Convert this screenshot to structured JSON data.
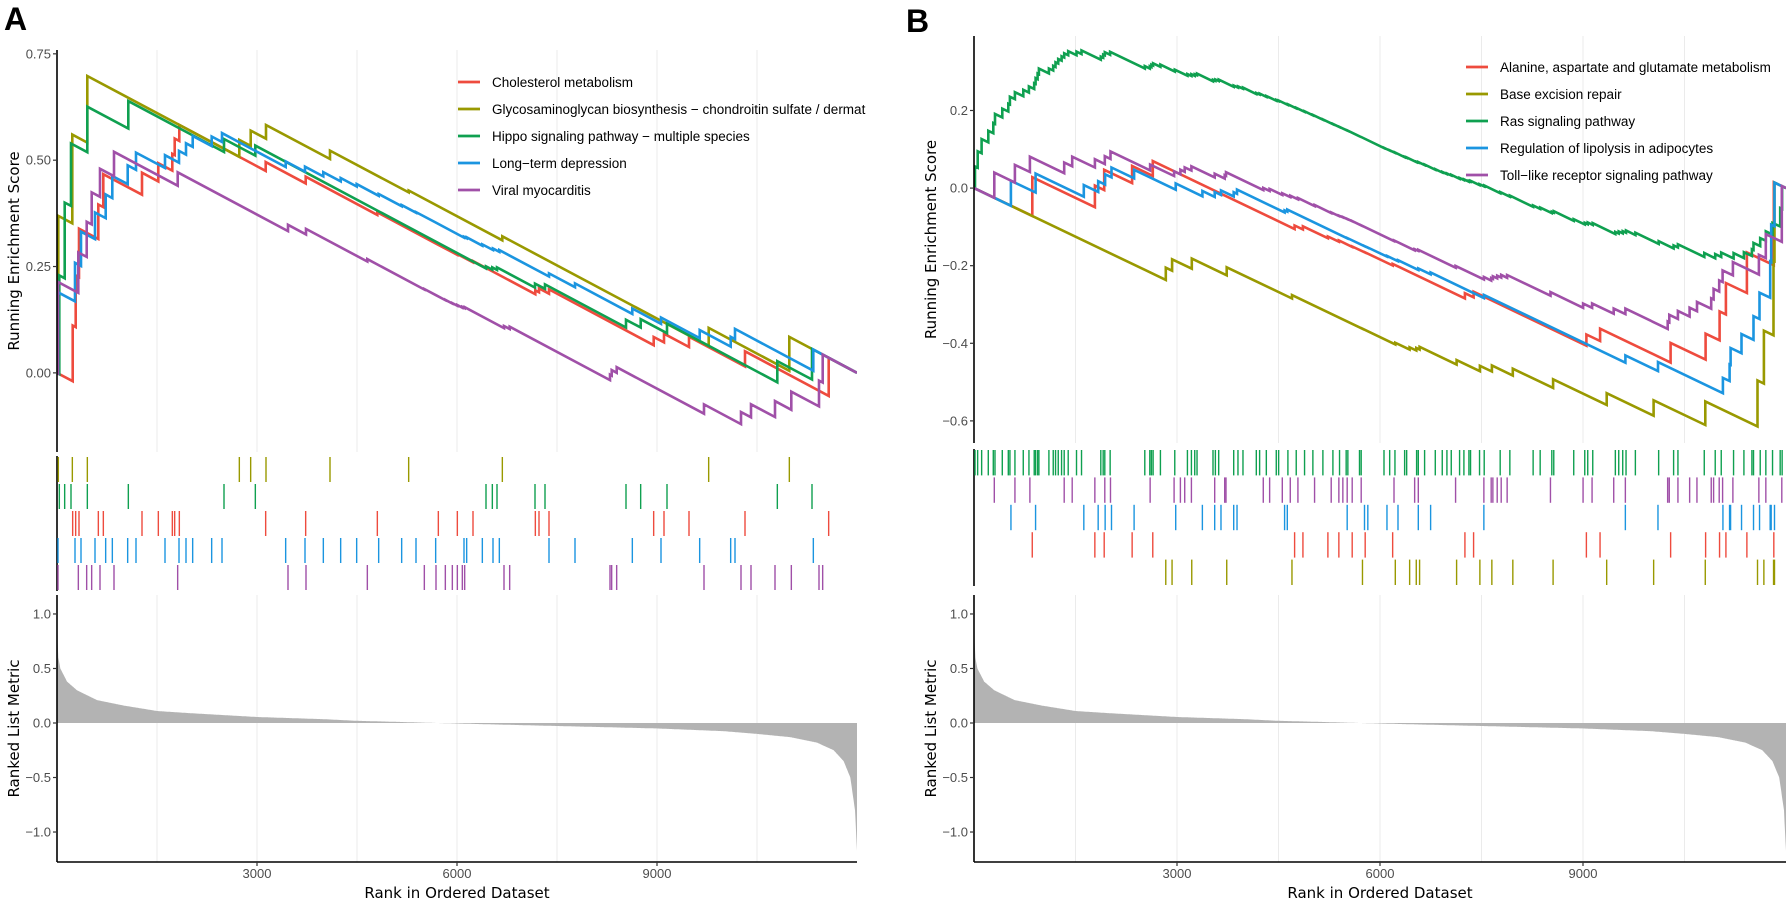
{
  "chart_data": [
    {
      "panel_label": "A",
      "type": "line",
      "xlabel": "Rank in Ordered Dataset",
      "ylabel_es": "Running Enrichment Score",
      "ylabel_metric": "Ranked List Metric",
      "x_range": [
        0,
        12000
      ],
      "xticks": [
        {
          "value": 3000,
          "label": "3000"
        },
        {
          "value": 6000,
          "label": "6000"
        },
        {
          "value": 9000,
          "label": "9000"
        }
      ],
      "es_ylim": [
        -0.186,
        0.759
      ],
      "es_yticks": [
        {
          "value": 0,
          "label": "0.00"
        },
        {
          "value": 0.25,
          "label": "0.25"
        },
        {
          "value": 0.5,
          "label": "0.50"
        },
        {
          "value": 0.75,
          "label": "0.75"
        }
      ],
      "metric_ylim": [
        -1.275,
        1.174
      ],
      "metric_yticks": [
        {
          "value": 1,
          "label": "1.0"
        },
        {
          "value": 0.5,
          "label": "0.5"
        },
        {
          "value": 0,
          "label": "0.0"
        },
        {
          "value": -0.5,
          "label": "−0.5"
        },
        {
          "value": -1,
          "label": "−1.0"
        }
      ],
      "grid": "vertical",
      "legend_position": "top-right",
      "hit_rows_order": [
        "Glycosaminoglycan biosynthesis − chondroitin sulfate / dermat",
        "Hippo signaling pathway − multiple species",
        "Cholesterol metabolism",
        "Long−term depression",
        "Viral myocarditis"
      ],
      "series": [
        {
          "name": "Cholesterol metabolism",
          "color": "#EE4B3E",
          "hits": [
            235,
            280,
            330,
            620,
            695,
            1275,
            1520,
            1730,
            1765,
            1835,
            3130,
            3730,
            4805,
            5720,
            6005,
            6240,
            7175,
            7230,
            7380,
            8950,
            9105,
            9480,
            10320,
            11575
          ]
        },
        {
          "name": "Glycosaminoglycan biosynthesis − chondroitin sulfate / dermat",
          "color": "#999900",
          "hits": [
            20,
            230,
            455,
            2735,
            2905,
            3135,
            4095,
            5275,
            6680,
            9775,
            10985
          ]
        },
        {
          "name": "Hippo signaling pathway − multiple species",
          "color": "#0FA050",
          "hits": [
            35,
            115,
            210,
            455,
            1070,
            2505,
            2975,
            6435,
            6530,
            6600,
            7170,
            7320,
            8535,
            8755,
            9150,
            10805,
            11325
          ]
        },
        {
          "name": "Long−term depression",
          "color": "#1B95E0",
          "hits": [
            15,
            270,
            360,
            570,
            730,
            830,
            1060,
            1185,
            1620,
            1830,
            1935,
            2035,
            2320,
            2475,
            3430,
            3720,
            3995,
            4255,
            4495,
            4825,
            5170,
            5385,
            5680,
            6105,
            6145,
            6380,
            6540,
            6635,
            7380,
            7770,
            8630,
            9060,
            9640,
            10105,
            10170,
            11345
          ]
        },
        {
          "name": "Viral myocarditis",
          "color": "#A050A8",
          "hits": [
            15,
            320,
            445,
            520,
            645,
            855,
            1810,
            3465,
            3735,
            4655,
            5510,
            5685,
            5825,
            5930,
            6005,
            6080,
            6115,
            6705,
            6790,
            8295,
            8320,
            8395,
            9705,
            10260,
            10410,
            10770,
            11015,
            11430,
            11485
          ]
        }
      ],
      "ranked_metric": [
        [
          0,
          1.15
        ],
        [
          5,
          0.8
        ],
        [
          20,
          0.6
        ],
        [
          50,
          0.5
        ],
        [
          150,
          0.38
        ],
        [
          300,
          0.3
        ],
        [
          600,
          0.21
        ],
        [
          1000,
          0.16
        ],
        [
          1500,
          0.11
        ],
        [
          2000,
          0.09
        ],
        [
          3000,
          0.055
        ],
        [
          4000,
          0.035
        ],
        [
          4500,
          0.02
        ],
        [
          5000,
          0.012
        ],
        [
          5700,
          0
        ],
        [
          7000,
          -0.02
        ],
        [
          8000,
          -0.035
        ],
        [
          9000,
          -0.05
        ],
        [
          10000,
          -0.075
        ],
        [
          10500,
          -0.1
        ],
        [
          11000,
          -0.13
        ],
        [
          11400,
          -0.18
        ],
        [
          11650,
          -0.25
        ],
        [
          11800,
          -0.35
        ],
        [
          11900,
          -0.5
        ],
        [
          11970,
          -0.8
        ],
        [
          12000,
          -1.17
        ]
      ]
    },
    {
      "panel_label": "B",
      "type": "line",
      "xlabel": "Rank in Ordered Dataset",
      "ylabel_es": "Running Enrichment Score",
      "ylabel_metric": "Ranked List Metric",
      "x_range": [
        0,
        12000
      ],
      "xticks": [
        {
          "value": 3000,
          "label": "3000"
        },
        {
          "value": 6000,
          "label": "6000"
        },
        {
          "value": 9000,
          "label": "9000"
        }
      ],
      "es_ylim": [
        -0.657,
        0.392
      ],
      "es_yticks": [
        {
          "value": -0.6,
          "label": "−0.6"
        },
        {
          "value": -0.4,
          "label": "−0.4"
        },
        {
          "value": -0.2,
          "label": "−0.2"
        },
        {
          "value": 0,
          "label": "0.0"
        },
        {
          "value": 0.2,
          "label": "0.2"
        }
      ],
      "metric_ylim": [
        -1.275,
        1.174
      ],
      "metric_yticks": [
        {
          "value": 1,
          "label": "1.0"
        },
        {
          "value": 0.5,
          "label": "0.5"
        },
        {
          "value": 0,
          "label": "0.0"
        },
        {
          "value": -0.5,
          "label": "−0.5"
        },
        {
          "value": -1,
          "label": "−1.0"
        }
      ],
      "grid": "vertical",
      "legend_position": "top-right",
      "hit_rows_order": [
        "Ras signaling pathway",
        "Toll−like receptor signaling pathway",
        "Regulation of lipolysis in adipocytes",
        "Alanine, aspartate and glutamate metabolism",
        "Base excision repair"
      ],
      "series": [
        {
          "name": "Alanine, aspartate and glutamate metabolism",
          "color": "#EE4B3E",
          "hits": [
            861,
            1786,
            1924,
            2337,
            2642,
            4738,
            4861,
            5230,
            5392,
            5589,
            5781,
            6187,
            7255,
            7383,
            9050,
            9252,
            10295,
            10812,
            11018,
            11112,
            11422,
            11820
          ]
        },
        {
          "name": "Base excision repair",
          "color": "#999900",
          "hits": [
            2834,
            2927,
            3218,
            3735,
            4699,
            5741,
            6226,
            6438,
            6536,
            6585,
            7132,
            7476,
            7653,
            7963,
            8558,
            9350,
            10044,
            10807,
            11579,
            11673,
            11816,
            11830
          ]
        },
        {
          "name": "Ras signaling pathway",
          "color": "#0FA050",
          "hits": [
            15,
            54,
            113,
            211,
            285,
            310,
            418,
            507,
            531,
            605,
            728,
            812,
            890,
            910,
            940,
            959,
            1107,
            1171,
            1205,
            1245,
            1294,
            1333,
            1392,
            1515,
            1589,
            1874,
            1909,
            1933,
            2012,
            2524,
            2598,
            2622,
            2647,
            2755,
            2967,
            3154,
            3213,
            3262,
            3296,
            3532,
            3567,
            3616,
            3838,
            3901,
            3975,
            4172,
            4221,
            4320,
            4467,
            4502,
            4639,
            4762,
            4885,
            5008,
            5156,
            5304,
            5402,
            5500,
            5525,
            5697,
            5722,
            6059,
            6143,
            6221,
            6364,
            6394,
            6541,
            6566,
            6659,
            6817,
            6920,
            6989,
            7053,
            7176,
            7240,
            7314,
            7338,
            7471,
            7540,
            7776,
            7919,
            8263,
            8367,
            8539,
            8568,
            8863,
            9026,
            9070,
            9144,
            9478,
            9528,
            9587,
            9636,
            9774,
            10118,
            10339,
            10403,
            10792,
            10954,
            11043,
            11225,
            11378,
            11496,
            11520,
            11619,
            11702,
            11801,
            11914,
            11943
          ]
        },
        {
          "name": "Regulation of lipolysis in adipocytes",
          "color": "#1B95E0",
          "hits": [
            546,
            910,
            1623,
            1835,
            1938,
            2032,
            2366,
            2981,
            3375,
            3557,
            3650,
            3838,
            3887,
            4590,
            4630,
            5515,
            5771,
            5820,
            6103,
            6266,
            6566,
            6748,
            7535,
            9626,
            10108,
            11068,
            11166,
            11181,
            11343,
            11520,
            11609,
            11766,
            11781,
            11830
          ]
        },
        {
          "name": "Toll−like receptor signaling pathway",
          "color": "#A050A8",
          "hits": [
            300,
            605,
            826,
            1333,
            1451,
            1786,
            1933,
            2017,
            2603,
            2957,
            3050,
            3114,
            3213,
            3557,
            3705,
            3724,
            4275,
            4369,
            4556,
            4674,
            4787,
            5033,
            5279,
            5392,
            5451,
            5515,
            5589,
            5722,
            6207,
            6512,
            6566,
            7117,
            7535,
            7643,
            7668,
            7732,
            7791,
            7879,
            8519,
            9001,
            9134,
            9454,
            9626,
            10251,
            10275,
            10403,
            10576,
            10684,
            10895,
            10930,
            11013,
            11063,
            11215,
            11599,
            11702,
            11938
          ]
        }
      ],
      "ranked_metric": [
        [
          0,
          1.15
        ],
        [
          5,
          0.8
        ],
        [
          20,
          0.6
        ],
        [
          50,
          0.5
        ],
        [
          150,
          0.38
        ],
        [
          300,
          0.3
        ],
        [
          600,
          0.21
        ],
        [
          1000,
          0.16
        ],
        [
          1500,
          0.11
        ],
        [
          2000,
          0.09
        ],
        [
          3000,
          0.055
        ],
        [
          4000,
          0.035
        ],
        [
          4500,
          0.02
        ],
        [
          5000,
          0.012
        ],
        [
          5700,
          0
        ],
        [
          7000,
          -0.02
        ],
        [
          8000,
          -0.035
        ],
        [
          9000,
          -0.05
        ],
        [
          10000,
          -0.075
        ],
        [
          10500,
          -0.1
        ],
        [
          11000,
          -0.13
        ],
        [
          11400,
          -0.18
        ],
        [
          11650,
          -0.25
        ],
        [
          11800,
          -0.35
        ],
        [
          11900,
          -0.5
        ],
        [
          11970,
          -0.8
        ],
        [
          12000,
          -1.17
        ]
      ]
    }
  ]
}
